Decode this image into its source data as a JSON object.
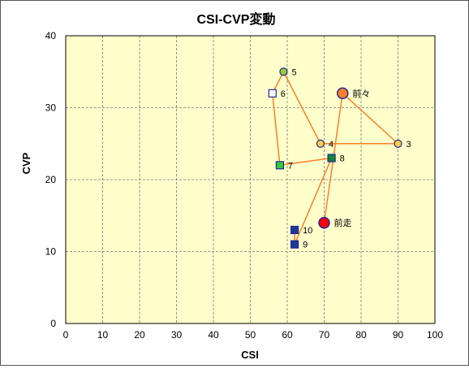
{
  "chart_data": {
    "type": "scatter",
    "title": "CSI-CVP変動",
    "xlabel": "CSI",
    "ylabel": "CVP",
    "xlim": [
      0,
      100
    ],
    "ylim": [
      0,
      40
    ],
    "x_ticks": [
      0,
      10,
      20,
      30,
      40,
      50,
      60,
      70,
      80,
      90,
      100
    ],
    "y_ticks": [
      0,
      10,
      20,
      30,
      40
    ],
    "grid": true,
    "legend": "none",
    "plot_background": "#ffffcc",
    "line_color": "#ff7f27",
    "points": [
      {
        "label": "前走",
        "x": 70,
        "y": 14,
        "marker": "circle-large",
        "fill": "#ff0000"
      },
      {
        "label": "前々",
        "x": 75,
        "y": 32,
        "marker": "circle-large",
        "fill": "#ff7f27"
      },
      {
        "label": "3",
        "x": 90,
        "y": 25,
        "marker": "circle",
        "fill": "#ffcc44"
      },
      {
        "label": "4",
        "x": 69,
        "y": 25,
        "marker": "circle",
        "fill": "#ffcc44"
      },
      {
        "label": "5",
        "x": 59,
        "y": 35,
        "marker": "circle",
        "fill": "#99cc33"
      },
      {
        "label": "6",
        "x": 56,
        "y": 32,
        "marker": "square",
        "fill": "#ffffff"
      },
      {
        "label": "7",
        "x": 58,
        "y": 22,
        "marker": "square",
        "fill": "#33cc33"
      },
      {
        "label": "8",
        "x": 72,
        "y": 23,
        "marker": "square",
        "fill": "#118833"
      },
      {
        "label": "9",
        "x": 62,
        "y": 11,
        "marker": "square",
        "fill": "#1f3a93"
      },
      {
        "label": "10",
        "x": 62,
        "y": 13,
        "marker": "square",
        "fill": "#1f3a93"
      }
    ]
  }
}
